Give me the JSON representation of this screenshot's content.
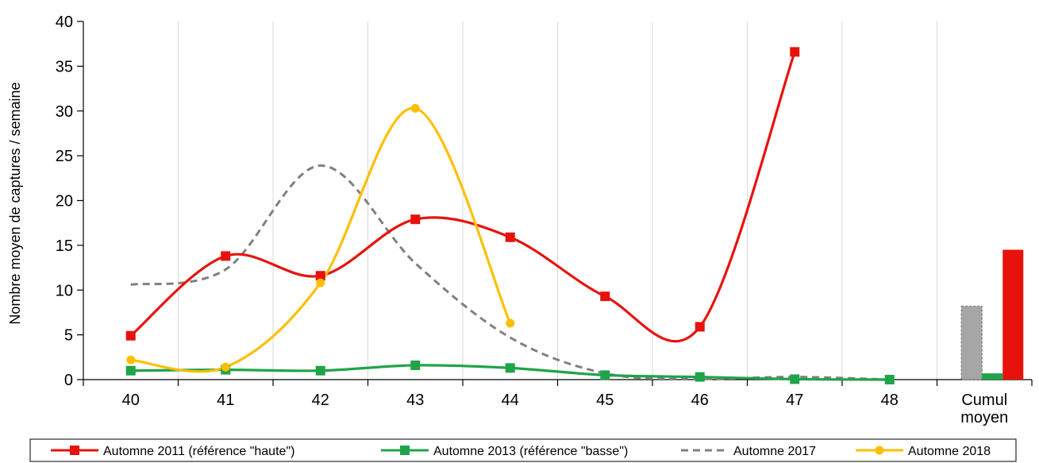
{
  "chart_data": {
    "type": "line",
    "title": "",
    "ylabel": "Nombre moyen de captures / semaine",
    "xlabel": "",
    "ylim": [
      0,
      40
    ],
    "yticks": [
      0,
      5,
      10,
      15,
      20,
      25,
      30,
      35,
      40
    ],
    "categories": [
      "40",
      "41",
      "42",
      "43",
      "44",
      "45",
      "46",
      "47",
      "48",
      "Cumul moyen"
    ],
    "grid": "vertical",
    "legend_position": "bottom",
    "series": [
      {
        "name": "Automne 2011 (référence \"haute\")",
        "color": "#e8120c",
        "style": "solid",
        "marker": "square",
        "x": [
          "40",
          "41",
          "42",
          "43",
          "44",
          "45",
          "46",
          "47"
        ],
        "values": [
          4.9,
          13.8,
          11.6,
          17.9,
          15.9,
          9.3,
          5.9,
          36.6
        ],
        "cumul": 14.5
      },
      {
        "name": "Automne 2013 (référence \"basse\")",
        "color": "#20a44a",
        "style": "solid",
        "marker": "square",
        "x": [
          "40",
          "41",
          "42",
          "43",
          "44",
          "45",
          "46",
          "47",
          "48"
        ],
        "values": [
          1.0,
          1.1,
          1.0,
          1.6,
          1.3,
          0.5,
          0.3,
          0.05,
          0.0
        ],
        "cumul": 0.7
      },
      {
        "name": "Automne 2017",
        "color": "#808080",
        "style": "dashed",
        "marker": "none",
        "x": [
          "40",
          "41",
          "42",
          "43",
          "44",
          "45",
          "46",
          "47",
          "48"
        ],
        "values": [
          10.6,
          12.3,
          23.9,
          13.0,
          4.7,
          0.7,
          0.1,
          0.3,
          0.0
        ],
        "cumul": 8.2
      },
      {
        "name": "Automne 2018",
        "color": "#ffbf00",
        "style": "solid",
        "marker": "circle",
        "x": [
          "40",
          "41",
          "42",
          "43",
          "44"
        ],
        "values": [
          2.2,
          1.4,
          10.8,
          30.3,
          6.3
        ]
      }
    ]
  }
}
